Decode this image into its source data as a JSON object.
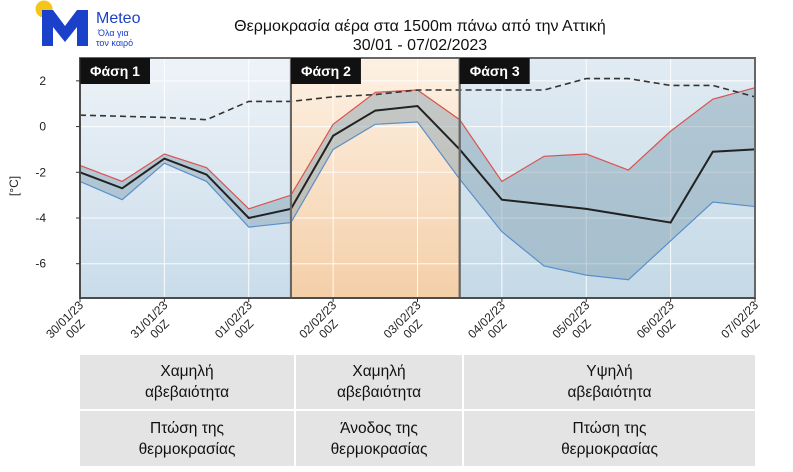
{
  "brand": {
    "name": "Meteo",
    "tagline": "Όλα για τον καιρό",
    "tagline_line1": "Όλα για",
    "tagline_line2": "τον καιρό",
    "logo_icon": "meteo-sun-m-logo",
    "blue": "#1b40c9",
    "sun": "#f5c518"
  },
  "chart_data": {
    "type": "line",
    "title": "Θερμοκρασία αέρα στα 1500m πάνω από την Αττική",
    "subtitle": "30/01 - 07/02/2023",
    "ylabel": "[°C]",
    "xlabel": "",
    "ylim": [
      -7.5,
      3
    ],
    "yticks": [
      -6,
      -4,
      -2,
      0,
      2
    ],
    "x_ticks": [
      {
        "x": 0,
        "line1": "30/01/23",
        "line2": "00Z"
      },
      {
        "x": 4,
        "line1": "31/01/23",
        "line2": "00Z"
      },
      {
        "x": 8,
        "line1": "01/02/23",
        "line2": "00Z"
      },
      {
        "x": 12,
        "line1": "02/02/23",
        "line2": "00Z"
      },
      {
        "x": 16,
        "line1": "03/02/23",
        "line2": "00Z"
      },
      {
        "x": 20,
        "line1": "04/02/23",
        "line2": "00Z"
      },
      {
        "x": 24,
        "line1": "05/02/23",
        "line2": "00Z"
      },
      {
        "x": 28,
        "line1": "06/02/23",
        "line2": "00Z"
      },
      {
        "x": 32,
        "line1": "07/02/23",
        "line2": "00Z"
      }
    ],
    "x_interval_note": "x in 6-hour steps from 30/01/23 00Z",
    "series": [
      {
        "name": "",
        "role": "upper",
        "x": [
          0,
          2,
          4,
          6,
          8,
          10,
          12,
          14,
          16,
          18,
          20,
          22,
          24,
          26,
          28,
          30,
          32
        ],
        "values": [
          -1.7,
          -2.4,
          -1.2,
          -1.8,
          -3.6,
          -3.0,
          0.1,
          1.5,
          1.6,
          0.3,
          -2.4,
          -1.3,
          -1.2,
          -1.9,
          -0.2,
          1.2,
          1.7
        ],
        "color": "#d9534f"
      },
      {
        "name": "",
        "role": "lower",
        "x": [
          0,
          2,
          4,
          6,
          8,
          10,
          12,
          14,
          16,
          18,
          20,
          22,
          24,
          26,
          28,
          30,
          32
        ],
        "values": [
          -2.4,
          -3.2,
          -1.6,
          -2.4,
          -4.4,
          -4.2,
          -1.0,
          0.1,
          0.2,
          -2.3,
          -4.6,
          -6.1,
          -6.5,
          -6.7,
          -5.0,
          -3.3,
          -3.5
        ],
        "color": "#5b8fc9"
      },
      {
        "name": "",
        "role": "mean",
        "x": [
          0,
          2,
          4,
          6,
          8,
          10,
          12,
          14,
          16,
          18,
          20,
          24,
          28,
          30,
          32
        ],
        "values": [
          -2.0,
          -2.7,
          -1.4,
          -2.1,
          -4.0,
          -3.6,
          -0.4,
          0.7,
          0.9,
          -1.0,
          -3.2,
          -3.6,
          -4.2,
          -1.1,
          -1.0
        ],
        "color": "#222222"
      },
      {
        "name": "",
        "role": "climatology",
        "style": "dashed",
        "x": [
          0,
          4,
          6,
          8,
          10,
          12,
          14,
          16,
          18,
          20,
          22,
          24,
          26,
          28,
          30,
          32
        ],
        "values": [
          0.5,
          0.4,
          0.3,
          1.1,
          1.1,
          1.3,
          1.4,
          1.6,
          1.6,
          1.6,
          1.6,
          2.1,
          2.1,
          1.8,
          1.8,
          1.3
        ],
        "color": "#333333"
      }
    ],
    "band_fill": "#7f9db0",
    "grid": true,
    "legend": "none",
    "phases": [
      {
        "label": "Φάση 1",
        "x_start": 0,
        "x_end": 10,
        "color": "#dfe8f2"
      },
      {
        "label": "Φάση 2",
        "x_start": 10,
        "x_end": 18,
        "color": "#f7dfc8"
      },
      {
        "label": "Φάση 3",
        "x_start": 18,
        "x_end": 32,
        "color": "#dbe6f0"
      }
    ]
  },
  "table": {
    "uncertainty": [
      {
        "line1": "Χαμηλή",
        "line2": "αβεβαιότητα"
      },
      {
        "line1": "Χαμηλή",
        "line2": "αβεβαιότητα"
      },
      {
        "line1": "Υψηλή",
        "line2": "αβεβαιότητα"
      }
    ],
    "trend": [
      {
        "line1": "Πτώση της",
        "line2": "θερμοκρασίας"
      },
      {
        "line1": "Άνοδος της",
        "line2": "θερμοκρασίας"
      },
      {
        "line1": "Πτώση της",
        "line2": "θερμοκρασίας"
      }
    ]
  }
}
